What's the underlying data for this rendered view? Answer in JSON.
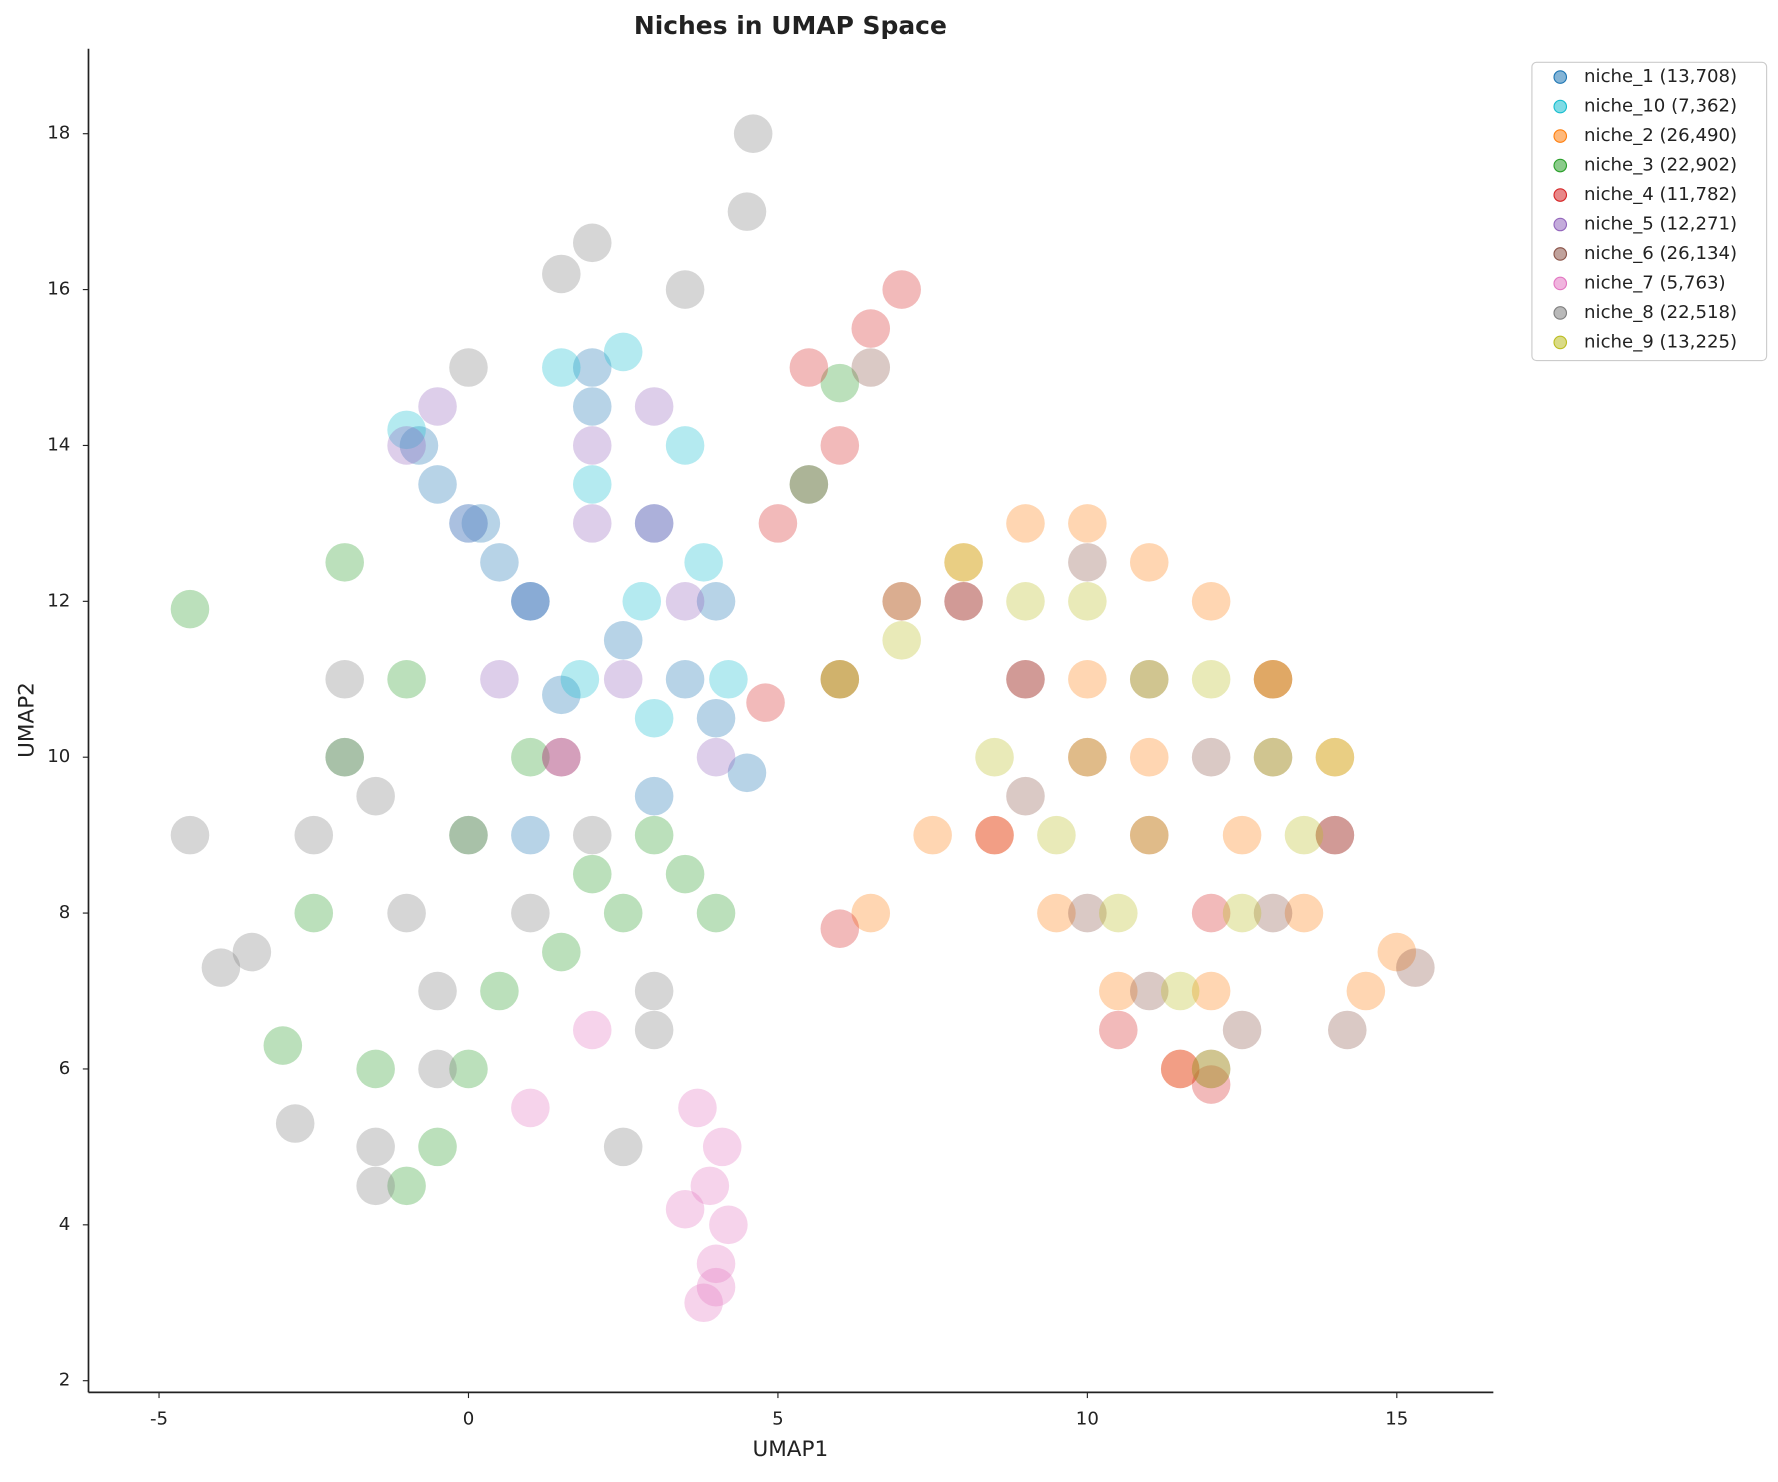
{
  "chart_data": {
    "type": "scatter",
    "title": "Niches in UMAP Space",
    "x_label": "UMAP1",
    "y_label": "UMAP2",
    "xlim": [
      -6.14,
      16.56
    ],
    "ylim": [
      1.85,
      19.09
    ],
    "xticks": [
      -5,
      0,
      5,
      10,
      15
    ],
    "yticks": [
      2,
      4,
      6,
      8,
      10,
      12,
      14,
      16,
      18
    ],
    "grid": false,
    "legend": "outside upper right",
    "series": [
      {
        "name": "niche_1 (13,708)",
        "color": "#1f77b4",
        "x": [
          -0.8,
          0.2,
          1,
          2,
          3,
          3.5,
          4,
          4.5,
          2.5,
          1.5,
          0.5,
          3,
          -0.5,
          2,
          4,
          1
        ],
        "y": [
          14,
          13,
          12,
          14.5,
          13,
          11,
          10.5,
          9.8,
          11.5,
          10.8,
          12.5,
          9.5,
          13.5,
          15,
          12,
          9
        ]
      },
      {
        "name": "niche_10 (7,362)",
        "color": "#17becf",
        "x": [
          1.5,
          2.5,
          3.5,
          3.8,
          2,
          1,
          0,
          3,
          4.2,
          -1,
          2.8,
          1.8
        ],
        "y": [
          15,
          15.2,
          14,
          12.5,
          13.5,
          12,
          13,
          10.5,
          11,
          14.2,
          12,
          11
        ]
      },
      {
        "name": "niche_2 (26,490)",
        "color": "#ff7f0e",
        "x": [
          6,
          7,
          8,
          9,
          10,
          11,
          12,
          13,
          14,
          15,
          11.5,
          10.5,
          9.5,
          8.5,
          12.5,
          13.5,
          14.5,
          11,
          10,
          12,
          7.5,
          6.5
        ],
        "y": [
          11,
          12,
          12.5,
          13,
          13,
          12.5,
          12,
          11,
          10,
          7.5,
          6,
          7,
          8,
          9,
          9,
          8,
          7,
          10,
          11,
          7,
          9,
          8
        ]
      },
      {
        "name": "niche_3 (22,902)",
        "color": "#2ca02c",
        "x": [
          -2,
          -1,
          0,
          1,
          2,
          3,
          4,
          -3,
          -2.5,
          -1.5,
          -0.5,
          0.5,
          1.5,
          2.5,
          3.5,
          -1,
          0,
          -4.5,
          -2,
          6,
          5.5
        ],
        "y": [
          10,
          11,
          9,
          10,
          8.5,
          9,
          8,
          6.3,
          8,
          6,
          5,
          7,
          7.5,
          8,
          8.5,
          4.5,
          6,
          11.9,
          12.5,
          14.8,
          13.5
        ]
      },
      {
        "name": "niche_4 (11,782)",
        "color": "#d62728",
        "x": [
          5.5,
          6,
          6.5,
          7,
          8,
          9,
          10,
          11,
          12,
          13,
          14,
          10.5,
          8.5,
          11.5,
          6,
          4.8,
          5,
          1.5,
          12
        ],
        "y": [
          15,
          14,
          15.5,
          16,
          12,
          11,
          10,
          9,
          8,
          11,
          9,
          6.5,
          9,
          6,
          7.8,
          10.7,
          13,
          10,
          5.8
        ]
      },
      {
        "name": "niche_5 (12,271)",
        "color": "#9467bd",
        "x": [
          -1,
          -0.5,
          0,
          1,
          2,
          3,
          3.5,
          2.5,
          1.5,
          0.5,
          2,
          3,
          4
        ],
        "y": [
          14,
          14.5,
          13,
          12,
          14,
          13,
          12,
          11,
          10,
          11,
          13,
          14.5,
          10
        ]
      },
      {
        "name": "niche_6 (26,134)",
        "color": "#8c564b",
        "x": [
          6,
          7,
          8,
          9,
          10,
          11,
          12,
          13,
          14,
          15.3,
          11,
          12,
          10,
          13,
          9,
          6.5,
          5.5,
          12.5,
          14.2
        ],
        "y": [
          11,
          12,
          12,
          11,
          12.5,
          11,
          10,
          10,
          9,
          7.3,
          7,
          6,
          8,
          8,
          9.5,
          15,
          13.5,
          6.5,
          6.5
        ]
      },
      {
        "name": "niche_7 (5,763)",
        "color": "#e377c2",
        "x": [
          3.8,
          4,
          4.2,
          3.9,
          4.1,
          3.7,
          4,
          3.5,
          1,
          2
        ],
        "y": [
          3,
          3.5,
          4,
          4.5,
          5,
          5.5,
          3.2,
          4.2,
          5.5,
          6.5
        ]
      },
      {
        "name": "niche_8 (22,518)",
        "color": "#7f7f7f",
        "x": [
          -4.5,
          -4,
          -3.5,
          -2.5,
          -2,
          -1.5,
          -1,
          -0.5,
          0,
          1,
          2,
          3,
          -1.5,
          -0.5,
          -2,
          -2.8,
          2.5,
          3.5,
          4.5,
          4.6,
          2,
          1.5,
          0,
          3,
          -1.5
        ],
        "y": [
          9,
          7.3,
          7.5,
          9,
          10,
          9.5,
          8,
          7,
          9,
          8,
          9,
          7,
          5,
          6,
          11,
          5.3,
          5,
          16,
          17,
          18,
          16.6,
          16.2,
          15,
          6.5,
          4.5
        ]
      },
      {
        "name": "niche_9 (13,225)",
        "color": "#bcbd22",
        "x": [
          6,
          7,
          8,
          9,
          10,
          11,
          12,
          13,
          14,
          13.5,
          12.5,
          11.5,
          10.5,
          9.5,
          8.5,
          11,
          12,
          10,
          13
        ],
        "y": [
          11,
          11.5,
          12.5,
          12,
          12,
          11,
          11,
          11,
          10,
          9,
          8,
          7,
          8,
          9,
          10,
          9,
          6,
          10,
          10
        ]
      }
    ]
  }
}
